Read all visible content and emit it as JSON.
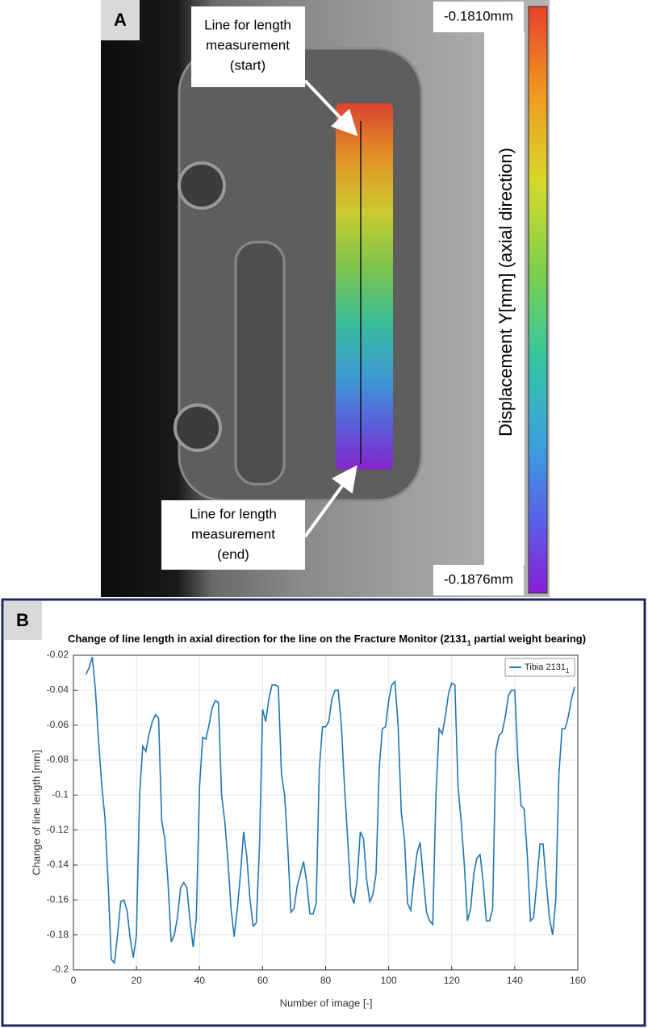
{
  "panel_a": {
    "label": "A",
    "colorbar": {
      "values": [
        -0.181,
        -0.1876
      ],
      "value_labels": [
        "-0.1810mm",
        "-0.1876mm"
      ],
      "label": "Displacement Y[mm] (axial direction)"
    },
    "start_label": [
      "Line for length",
      "measurement",
      "(start)"
    ],
    "end_label": [
      "Line for length",
      "measurement",
      "(end)"
    ]
  },
  "panel_b": {
    "label": "B"
  },
  "chart_data": {
    "type": "line",
    "title": {
      "text": "Change of line length in axial direction for the line on the Fracture Monitor (2131",
      "sub": "1",
      "tail": " partial weight bearing)"
    },
    "x_label": "Number of image [-]",
    "y_label": "Change of line length [mm]",
    "xlim": [
      0,
      160
    ],
    "xticks": [
      0,
      20,
      40,
      60,
      80,
      100,
      120,
      140,
      160
    ],
    "ylim": [
      -0.2,
      -0.02
    ],
    "yticks": [
      -0.2,
      -0.18,
      -0.16,
      -0.14,
      -0.12,
      -0.1,
      -0.08,
      -0.06,
      -0.04,
      -0.02
    ],
    "grid": true,
    "legend": "upper right",
    "x": [
      4,
      5,
      6,
      7,
      8,
      9,
      10,
      11,
      12,
      13,
      14,
      15,
      16,
      17,
      18,
      19,
      20,
      21,
      22,
      23,
      24,
      25,
      26,
      27,
      28,
      29,
      30,
      31,
      32,
      33,
      34,
      35,
      36,
      37,
      38,
      39,
      40,
      41,
      42,
      43,
      44,
      45,
      46,
      47,
      48,
      49,
      50,
      51,
      52,
      53,
      54,
      55,
      56,
      57,
      58,
      59,
      60,
      61,
      62,
      63,
      64,
      65,
      66,
      67,
      68,
      69,
      70,
      71,
      72,
      73,
      74,
      75,
      76,
      77,
      78,
      79,
      80,
      81,
      82,
      83,
      84,
      85,
      86,
      87,
      88,
      89,
      90,
      91,
      92,
      93,
      94,
      95,
      96,
      97,
      98,
      99,
      100,
      101,
      102,
      103,
      104,
      105,
      106,
      107,
      108,
      109,
      110,
      111,
      112,
      113,
      114,
      115,
      116,
      117,
      118,
      119,
      120,
      121,
      122,
      123,
      124,
      125,
      126,
      127,
      128,
      129,
      130,
      131,
      132,
      133,
      134,
      135,
      136,
      137,
      138,
      139,
      140,
      141,
      142,
      143,
      144,
      145,
      146,
      147,
      148,
      149,
      150,
      151,
      152,
      153,
      154,
      155,
      156,
      157,
      158,
      159
    ],
    "series": [
      {
        "name": "Tibia 2131",
        "name_sub": "1",
        "color": "#1f77b4",
        "values": [
          -0.031,
          -0.027,
          -0.021,
          -0.04,
          -0.07,
          -0.095,
          -0.113,
          -0.15,
          -0.194,
          -0.196,
          -0.18,
          -0.161,
          -0.16,
          -0.166,
          -0.182,
          -0.193,
          -0.18,
          -0.1,
          -0.072,
          -0.075,
          -0.065,
          -0.058,
          -0.054,
          -0.056,
          -0.115,
          -0.125,
          -0.15,
          -0.184,
          -0.18,
          -0.17,
          -0.153,
          -0.15,
          -0.153,
          -0.172,
          -0.187,
          -0.17,
          -0.095,
          -0.067,
          -0.068,
          -0.06,
          -0.05,
          -0.046,
          -0.047,
          -0.1,
          -0.115,
          -0.137,
          -0.165,
          -0.181,
          -0.165,
          -0.145,
          -0.121,
          -0.135,
          -0.16,
          -0.175,
          -0.173,
          -0.13,
          -0.051,
          -0.058,
          -0.045,
          -0.037,
          -0.037,
          -0.038,
          -0.088,
          -0.1,
          -0.13,
          -0.167,
          -0.165,
          -0.152,
          -0.145,
          -0.138,
          -0.15,
          -0.168,
          -0.168,
          -0.162,
          -0.085,
          -0.061,
          -0.061,
          -0.058,
          -0.045,
          -0.04,
          -0.04,
          -0.06,
          -0.095,
          -0.125,
          -0.157,
          -0.162,
          -0.148,
          -0.121,
          -0.125,
          -0.148,
          -0.161,
          -0.157,
          -0.145,
          -0.085,
          -0.062,
          -0.061,
          -0.046,
          -0.037,
          -0.035,
          -0.06,
          -0.11,
          -0.125,
          -0.162,
          -0.166,
          -0.148,
          -0.133,
          -0.127,
          -0.148,
          -0.167,
          -0.172,
          -0.174,
          -0.1,
          -0.062,
          -0.065,
          -0.055,
          -0.042,
          -0.036,
          -0.037,
          -0.095,
          -0.115,
          -0.14,
          -0.172,
          -0.165,
          -0.145,
          -0.136,
          -0.134,
          -0.15,
          -0.172,
          -0.172,
          -0.165,
          -0.075,
          -0.066,
          -0.064,
          -0.055,
          -0.043,
          -0.04,
          -0.04,
          -0.08,
          -0.106,
          -0.108,
          -0.135,
          -0.172,
          -0.17,
          -0.15,
          -0.128,
          -0.128,
          -0.15,
          -0.17,
          -0.18,
          -0.16,
          -0.088,
          -0.062,
          -0.062,
          -0.055,
          -0.045,
          -0.038
        ]
      }
    ]
  }
}
